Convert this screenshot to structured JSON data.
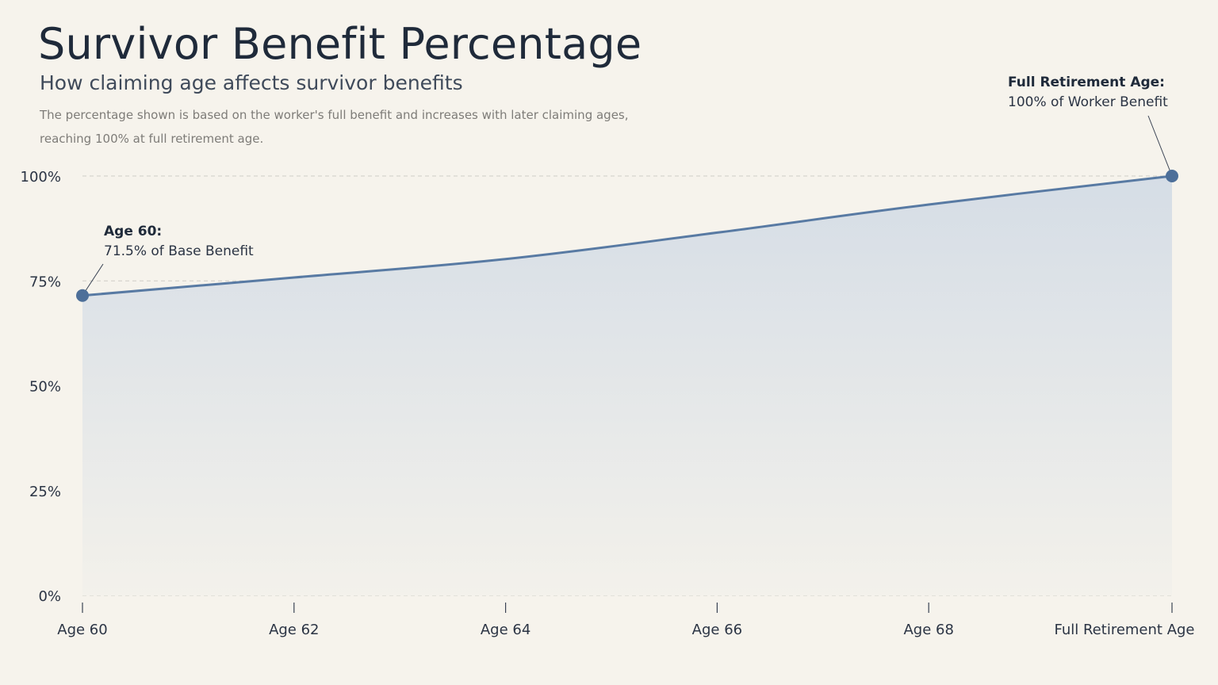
{
  "header": {
    "title": "Survivor Benefit Percentage",
    "subtitle": "How claiming age affects survivor benefits",
    "description": "The percentage shown is based on the worker's full benefit and increases with later claiming ages, reaching 100% at full retirement age."
  },
  "colors": {
    "line": "#587aa3",
    "point": "#4d6f99",
    "area_top": "#d5dde6",
    "area_bottom": "#f3f1eb",
    "grid": "#cfcdc6",
    "background": "#f6f3ec"
  },
  "chart_data": {
    "type": "area",
    "categories": [
      "Age 60",
      "Age 62",
      "Age 64",
      "Age 66",
      "Age 68",
      "Full Retirement Age"
    ],
    "x": [
      60,
      62,
      64,
      66,
      68,
      70.3
    ],
    "values": [
      71.5,
      75.8,
      80.2,
      86.5,
      93.2,
      100
    ],
    "ylim": [
      0,
      100
    ],
    "yticks": [
      0,
      25,
      50,
      75,
      100
    ],
    "ytick_labels": [
      "0%",
      "25%",
      "50%",
      "75%",
      "100%"
    ],
    "grid": true,
    "annotations": [
      {
        "index": 0,
        "title": "Age 60:",
        "text": "71.5% of Base Benefit"
      },
      {
        "index": 5,
        "title": "Full Retirement Age:",
        "text": "100% of Worker Benefit"
      }
    ]
  }
}
